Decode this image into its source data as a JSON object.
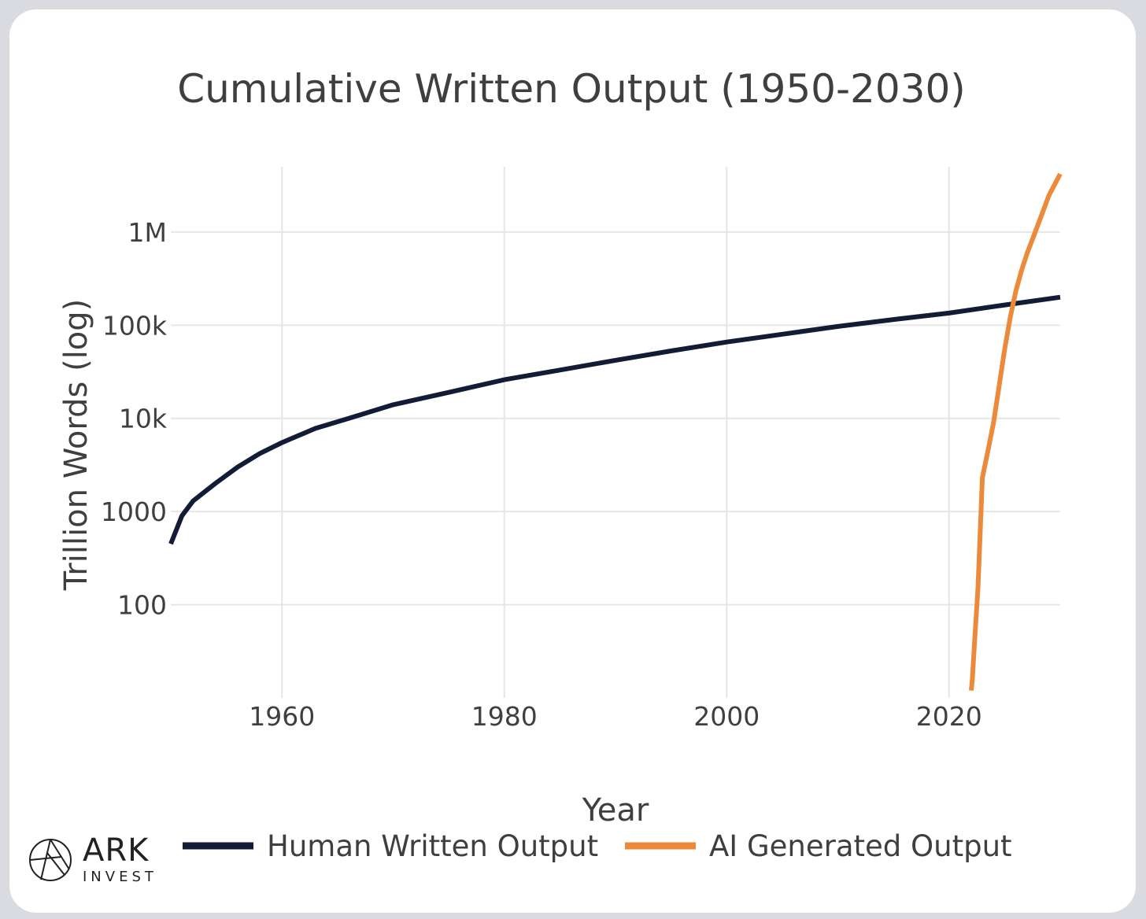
{
  "chart_data": {
    "type": "line",
    "title": "Cumulative Written Output (1950-2030)",
    "xlabel": "Year",
    "ylabel": "Trillion Words (log)",
    "yscale": "log",
    "xlim": [
      1950,
      2030
    ],
    "ylim_log10": [
      1.0,
      6.7
    ],
    "x_ticks": [
      1960,
      1980,
      2000,
      2020
    ],
    "x_tick_labels": [
      "1960",
      "1980",
      "2000",
      "2020"
    ],
    "y_ticks": [
      100,
      1000,
      10000,
      100000,
      1000000
    ],
    "y_tick_labels": [
      "100",
      "1000",
      "10k",
      "100k",
      "1M"
    ],
    "grid": true,
    "legend_position": "bottom",
    "series": [
      {
        "name": "Human Written Output",
        "color": "#131c36",
        "x": [
          1950,
          1951,
          1952,
          1954,
          1956,
          1958,
          1960,
          1963,
          1966,
          1970,
          1975,
          1980,
          1985,
          1990,
          1995,
          2000,
          2005,
          2010,
          2015,
          2020,
          2025,
          2030
        ],
        "y": [
          450,
          900,
          1300,
          2000,
          3000,
          4200,
          5500,
          7800,
          10000,
          14000,
          19000,
          26000,
          33000,
          42000,
          53000,
          66000,
          80000,
          97000,
          115000,
          135000,
          165000,
          200000
        ]
      },
      {
        "name": "AI Generated Output",
        "color": "#ec8a3c",
        "x": [
          2022,
          2022.1,
          2022.3,
          2022.6,
          2023,
          2023.5,
          2024,
          2024.5,
          2025,
          2025.5,
          2026,
          2026.5,
          2027,
          2028,
          2029,
          2030
        ],
        "y": [
          12,
          16,
          40,
          150,
          2300,
          4500,
          9000,
          22000,
          55000,
          120000,
          230000,
          380000,
          580000,
          1200000,
          2500000,
          4200000
        ]
      }
    ]
  },
  "brand": {
    "name": "ARK",
    "sub": "INVEST"
  }
}
